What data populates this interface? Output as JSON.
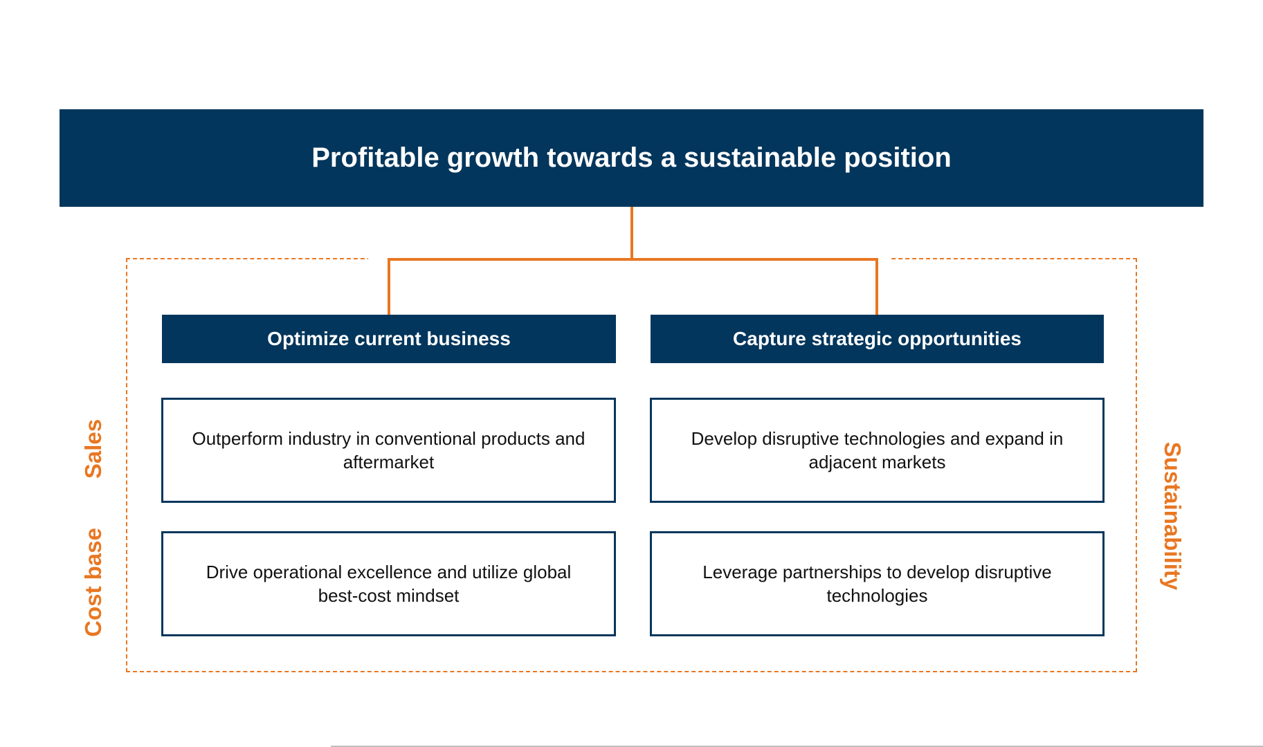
{
  "title": "Profitable growth towards a sustainable position",
  "columns": [
    {
      "header": "Optimize current business",
      "items": [
        "Outperform industry in conventional products and aftermarket",
        "Drive operational excellence and utilize global best-cost mindset"
      ]
    },
    {
      "header": "Capture strategic opportunities",
      "items": [
        "Develop disruptive technologies and expand in adjacent markets",
        "Leverage partnerships to develop disruptive technologies"
      ]
    }
  ],
  "side_labels": {
    "left_top": "Sales",
    "left_bottom": "Cost base",
    "right": "Sustainability"
  },
  "colors": {
    "navy": "#03365c",
    "orange": "#e87722"
  }
}
